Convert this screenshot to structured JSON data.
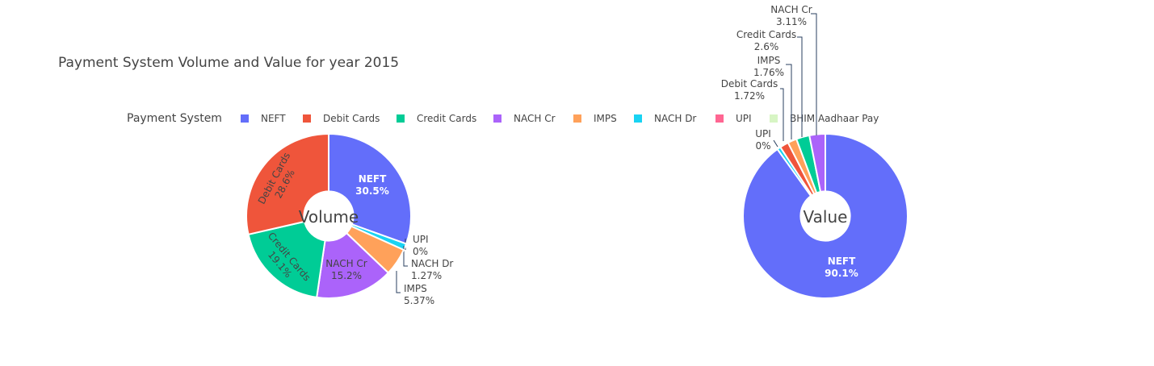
{
  "chart_data": {
    "type": "pie",
    "title": "Payment System Volume and Value for year 2015",
    "legend": {
      "title": "Payment System",
      "placement": "top",
      "items": [
        {
          "name": "NEFT",
          "color": "#636efa"
        },
        {
          "name": "Debit Cards",
          "color": "#ef553b"
        },
        {
          "name": "Credit Cards",
          "color": "#00cc96"
        },
        {
          "name": "NACH Cr",
          "color": "#ab63fa"
        },
        {
          "name": "IMPS",
          "color": "#ffa15a"
        },
        {
          "name": "NACH Dr",
          "color": "#19d3f3"
        },
        {
          "name": "UPI",
          "color": "#ff6692"
        },
        {
          "name": "BHIM Aadhaar Pay",
          "color": "#d7f5c4"
        }
      ]
    },
    "pies": [
      {
        "name": "Volume",
        "hole_label": "Volume",
        "slices": [
          {
            "label": "NEFT",
            "percent": 30.5,
            "text": "30.5%"
          },
          {
            "label": "UPI",
            "percent": 0,
            "text": "0%"
          },
          {
            "label": "NACH Dr",
            "percent": 1.27,
            "text": "1.27%"
          },
          {
            "label": "IMPS",
            "percent": 5.37,
            "text": "5.37%"
          },
          {
            "label": "NACH Cr",
            "percent": 15.2,
            "text": "15.2%"
          },
          {
            "label": "Credit Cards",
            "percent": 19.1,
            "text": "19.1%"
          },
          {
            "label": "Debit Cards",
            "percent": 28.6,
            "text": "28.6%"
          }
        ]
      },
      {
        "name": "Value",
        "hole_label": "Value",
        "slices": [
          {
            "label": "NEFT",
            "percent": 90.1,
            "text": "90.1%"
          },
          {
            "label": "UPI",
            "percent": 0,
            "text": "0%"
          },
          {
            "label": "NACH Dr",
            "percent": 0.7,
            "text": ""
          },
          {
            "label": "Debit Cards",
            "percent": 1.72,
            "text": "1.72%"
          },
          {
            "label": "IMPS",
            "percent": 1.76,
            "text": "1.76%"
          },
          {
            "label": "Credit Cards",
            "percent": 2.6,
            "text": "2.6%"
          },
          {
            "label": "NACH Cr",
            "percent": 3.11,
            "text": "3.11%"
          }
        ]
      }
    ]
  }
}
